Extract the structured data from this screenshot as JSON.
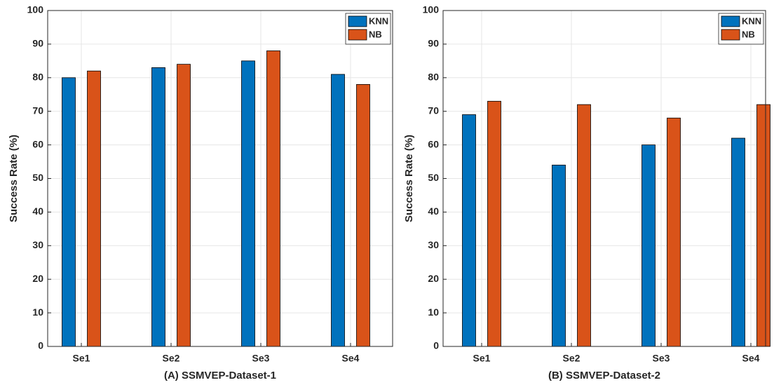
{
  "chart_data": [
    {
      "type": "bar",
      "x_label": "(A) SSMVEP-Dataset-1",
      "y_label": "Success Rate (%)",
      "categories": [
        "Se1",
        "Se2",
        "Se3",
        "Se4"
      ],
      "series": [
        {
          "name": "KNN",
          "color": "#0072bd",
          "values": [
            80,
            83,
            85,
            81
          ]
        },
        {
          "name": "NB",
          "color": "#d95319",
          "values": [
            82,
            84,
            88,
            78
          ]
        }
      ],
      "ylim": [
        0,
        100
      ],
      "yticks": [
        0,
        10,
        20,
        30,
        40,
        50,
        60,
        70,
        80,
        90,
        100
      ],
      "grid": true,
      "legend": "top-right"
    },
    {
      "type": "bar",
      "x_label": "(B) SSMVEP-Dataset-2",
      "y_label": "Success Rate (%)",
      "categories": [
        "Se1",
        "Se2",
        "Se3",
        "Se4"
      ],
      "series": [
        {
          "name": "KNN",
          "color": "#0072bd",
          "values": [
            69,
            54,
            60,
            62
          ]
        },
        {
          "name": "NB",
          "color": "#d95319",
          "values": [
            73,
            72,
            68,
            72
          ]
        }
      ],
      "ylim": [
        0,
        100
      ],
      "yticks": [
        0,
        10,
        20,
        30,
        40,
        50,
        60,
        70,
        80,
        90,
        100
      ],
      "grid": true,
      "legend": "top-right"
    }
  ]
}
